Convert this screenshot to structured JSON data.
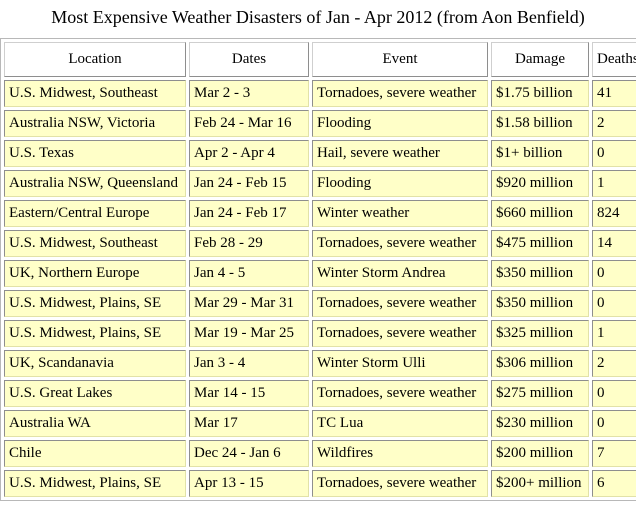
{
  "title": "Most Expensive Weather Disasters of Jan - Apr 2012 (from Aon Benfield)",
  "table": {
    "headers": {
      "location": "Location",
      "dates": "Dates",
      "event": "Event",
      "damage": "Damage",
      "deaths": "Deaths"
    },
    "rows": [
      {
        "location": "U.S. Midwest, Southeast",
        "dates": "Mar 2 - 3",
        "event": "Tornadoes, severe weather",
        "damage": "$1.75 billion",
        "deaths": "41"
      },
      {
        "location": "Australia NSW, Victoria",
        "dates": "Feb 24 - Mar 16",
        "event": "Flooding",
        "damage": "$1.58 billion",
        "deaths": "2"
      },
      {
        "location": "U.S. Texas",
        "dates": "Apr 2 - Apr 4",
        "event": "Hail, severe weather",
        "damage": "$1+ billion",
        "deaths": "0"
      },
      {
        "location": "Australia NSW, Queensland",
        "dates": "Jan 24 - Feb 15",
        "event": "Flooding",
        "damage": "$920 million",
        "deaths": "1"
      },
      {
        "location": "Eastern/Central Europe",
        "dates": "Jan 24 - Feb 17",
        "event": "Winter weather",
        "damage": "$660 million",
        "deaths": "824"
      },
      {
        "location": "U.S. Midwest, Southeast",
        "dates": "Feb 28 - 29",
        "event": "Tornadoes, severe weather",
        "damage": "$475 million",
        "deaths": "14"
      },
      {
        "location": "UK, Northern Europe",
        "dates": "Jan 4 - 5",
        "event": "Winter Storm Andrea",
        "damage": "$350 million",
        "deaths": "0"
      },
      {
        "location": "U.S. Midwest, Plains, SE",
        "dates": "Mar 29 - Mar 31",
        "event": "Tornadoes, severe weather",
        "damage": "$350 million",
        "deaths": "0"
      },
      {
        "location": "U.S. Midwest, Plains, SE",
        "dates": "Mar 19 - Mar 25",
        "event": "Tornadoes, severe weather",
        "damage": "$325 million",
        "deaths": "1"
      },
      {
        "location": "UK, Scandanavia",
        "dates": "Jan 3 - 4",
        "event": "Winter Storm Ulli",
        "damage": "$306 million",
        "deaths": "2"
      },
      {
        "location": "U.S. Great Lakes",
        "dates": "Mar 14 - 15",
        "event": "Tornadoes, severe weather",
        "damage": "$275 million",
        "deaths": "0"
      },
      {
        "location": "Australia WA",
        "dates": "Mar 17",
        "event": "TC Lua",
        "damage": "$230 million",
        "deaths": "0"
      },
      {
        "location": "Chile",
        "dates": "Dec 24 - Jan 6",
        "event": "Wildfires",
        "damage": "$200 million",
        "deaths": "7"
      },
      {
        "location": "U.S. Midwest, Plains, SE",
        "dates": "Apr 13 - 15",
        "event": "Tornadoes, severe weather",
        "damage": "$200+ million",
        "deaths": "6"
      }
    ]
  }
}
